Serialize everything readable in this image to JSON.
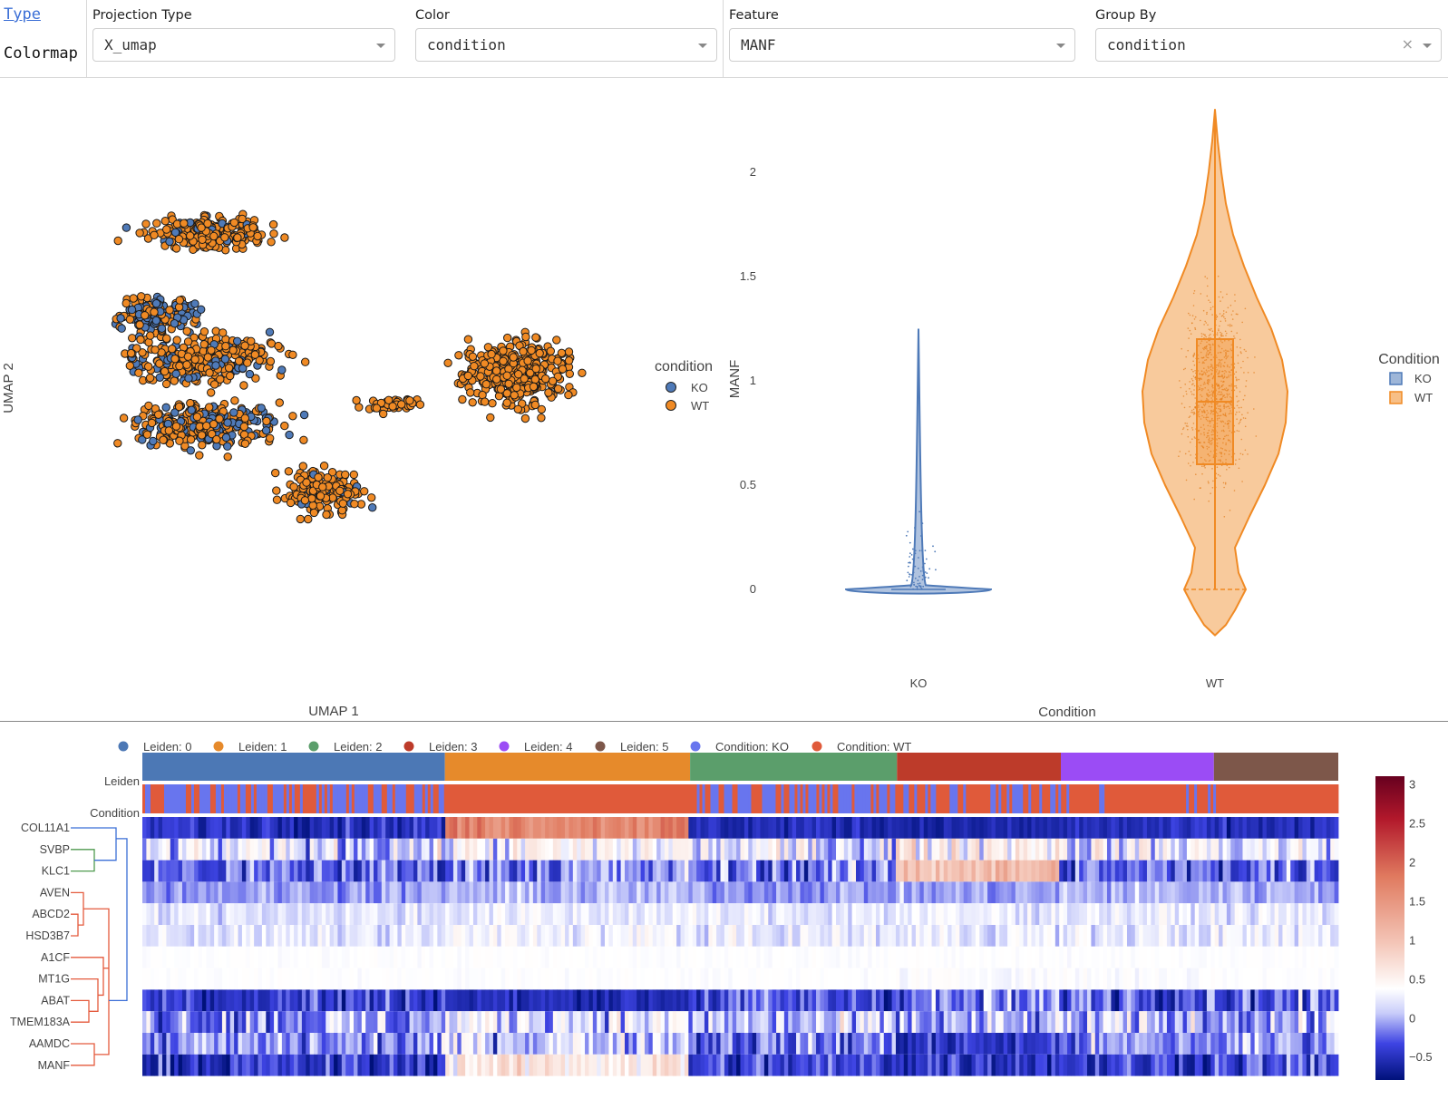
{
  "tabs": {
    "type": "Type",
    "colormap": "Colormap"
  },
  "controls": {
    "projection": {
      "label": "Projection Type",
      "value": "X_umap"
    },
    "color": {
      "label": "Color",
      "value": "condition"
    },
    "feature": {
      "label": "Feature",
      "value": "MANF"
    },
    "groupby": {
      "label": "Group By",
      "value": "condition"
    }
  },
  "colors": {
    "ko": "#4f7ab8",
    "wt": "#f08a24",
    "link": "#3b6fd6"
  },
  "chart_data": [
    {
      "type": "scatter",
      "xlabel": "UMAP 1",
      "ylabel": "UMAP 2",
      "legend_title": "condition",
      "legend_position": "right",
      "series": [
        {
          "name": "KO",
          "color": "#4f7ab8"
        },
        {
          "name": "WT",
          "color": "#f08a24"
        }
      ],
      "clusters": [
        {
          "cx": 0.28,
          "cy": 0.19,
          "w": 0.33,
          "h": 0.1,
          "n": 230,
          "ko": 0.12
        },
        {
          "cx": 0.18,
          "cy": 0.35,
          "w": 0.22,
          "h": 0.1,
          "n": 170,
          "ko": 0.5
        },
        {
          "cx": 0.27,
          "cy": 0.44,
          "w": 0.4,
          "h": 0.14,
          "n": 330,
          "ko": 0.22
        },
        {
          "cx": 0.27,
          "cy": 0.57,
          "w": 0.4,
          "h": 0.13,
          "n": 330,
          "ko": 0.3
        },
        {
          "cx": 0.48,
          "cy": 0.7,
          "w": 0.22,
          "h": 0.14,
          "n": 180,
          "ko": 0.1
        },
        {
          "cx": 0.82,
          "cy": 0.47,
          "w": 0.27,
          "h": 0.2,
          "n": 360,
          "ko": 0.01
        },
        {
          "cx": 0.6,
          "cy": 0.53,
          "w": 0.24,
          "h": 0.04,
          "n": 40,
          "ko": 0.0
        }
      ]
    },
    {
      "type": "violin",
      "xlabel": "Condition",
      "ylabel": "MANF",
      "legend_title": "Condition",
      "legend_position": "right",
      "categories": [
        "KO",
        "WT"
      ],
      "yticks": [
        0,
        0.5,
        1,
        1.5,
        2
      ],
      "ylim": [
        -0.22,
        2.3
      ],
      "series": [
        {
          "name": "KO",
          "color": "#4f7ab8",
          "max": 1.25,
          "median": 0,
          "q1": 0,
          "q3": 0,
          "min": 0
        },
        {
          "name": "WT",
          "color": "#f08a24",
          "max": 2.3,
          "median": 0.9,
          "q1": 0.6,
          "q3": 1.2,
          "min": 0
        }
      ]
    },
    {
      "type": "heatmap",
      "legend": [
        {
          "name": "Leiden: 0",
          "color": "#4c78b5"
        },
        {
          "name": "Leiden: 1",
          "color": "#e68a2b"
        },
        {
          "name": "Leiden: 2",
          "color": "#5b9e6b"
        },
        {
          "name": "Leiden: 3",
          "color": "#bd3b2a"
        },
        {
          "name": "Leiden: 4",
          "color": "#9b4cf5"
        },
        {
          "name": "Leiden: 5",
          "color": "#7d574a"
        },
        {
          "name": "Condition: KO",
          "color": "#6875ee"
        },
        {
          "name": "Condition: WT",
          "color": "#e05a3a"
        }
      ],
      "annotation_rows": [
        "Leiden",
        "Condition"
      ],
      "leiden_fractions": [
        0.253,
        0.205,
        0.173,
        0.137,
        0.128,
        0.104
      ],
      "leiden_ko_share": [
        0.55,
        0.0,
        0.6,
        0.25,
        0.2,
        0.05
      ],
      "genes": [
        "COL11A1",
        "SVBP",
        "KLC1",
        "AVEN",
        "ABCD2",
        "HSD3B7",
        "A1CF",
        "MT1G",
        "ABAT",
        "TMEM183A",
        "AAMDC",
        "MANF"
      ],
      "colorscale_range": [
        -0.8,
        3.1
      ],
      "colorbar_ticks": [
        3,
        2.5,
        2,
        1.5,
        1,
        0.5,
        0,
        -0.5
      ],
      "colorbar_tick_labels": [
        "3",
        "2.5",
        "2",
        "1.5",
        "1",
        "0.5",
        "0",
        "−0.5"
      ]
    }
  ]
}
